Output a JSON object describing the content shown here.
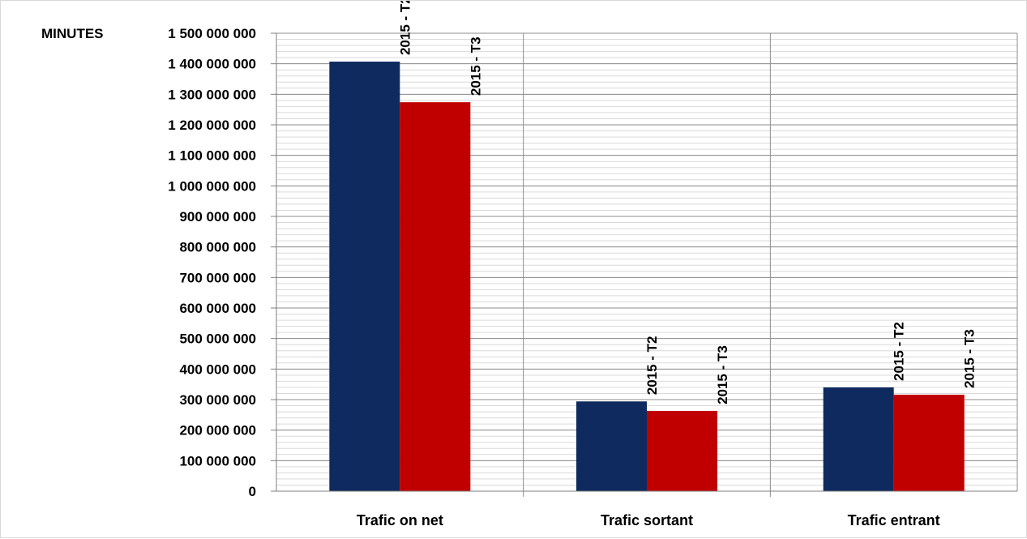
{
  "chart_data": {
    "type": "bar",
    "y_unit_label": "MINUTES",
    "categories": [
      "Trafic on net",
      "Trafic sortant",
      "Trafic entrant"
    ],
    "series": [
      {
        "bar_label": "2015 - T2",
        "color": "#0f2a5e",
        "values": [
          1407000000,
          294000000,
          340000000
        ]
      },
      {
        "bar_label": "2015 - T3",
        "color": "#c00000",
        "values": [
          1274000000,
          263000000,
          316000000
        ]
      }
    ],
    "ylim": [
      0,
      1500000000
    ],
    "y_ticks": [
      {
        "value": 0,
        "label": "0"
      },
      {
        "value": 100000000,
        "label": "100 000 000"
      },
      {
        "value": 200000000,
        "label": "200 000 000"
      },
      {
        "value": 300000000,
        "label": "300 000 000"
      },
      {
        "value": 400000000,
        "label": "400 000 000"
      },
      {
        "value": 500000000,
        "label": "500 000 000"
      },
      {
        "value": 600000000,
        "label": "600 000 000"
      },
      {
        "value": 700000000,
        "label": "700 000 000"
      },
      {
        "value": 800000000,
        "label": "800 000 000"
      },
      {
        "value": 900000000,
        "label": "900 000 000"
      },
      {
        "value": 1000000000,
        "label": "1 000 000 000"
      },
      {
        "value": 1100000000,
        "label": "1 100 000 000"
      },
      {
        "value": 1200000000,
        "label": "1 200 000 000"
      },
      {
        "value": 1300000000,
        "label": "1 300 000 000"
      },
      {
        "value": 1400000000,
        "label": "1 400 000 000"
      },
      {
        "value": 1500000000,
        "label": "1 500 000 000"
      }
    ],
    "grid": true,
    "legend": "none"
  }
}
